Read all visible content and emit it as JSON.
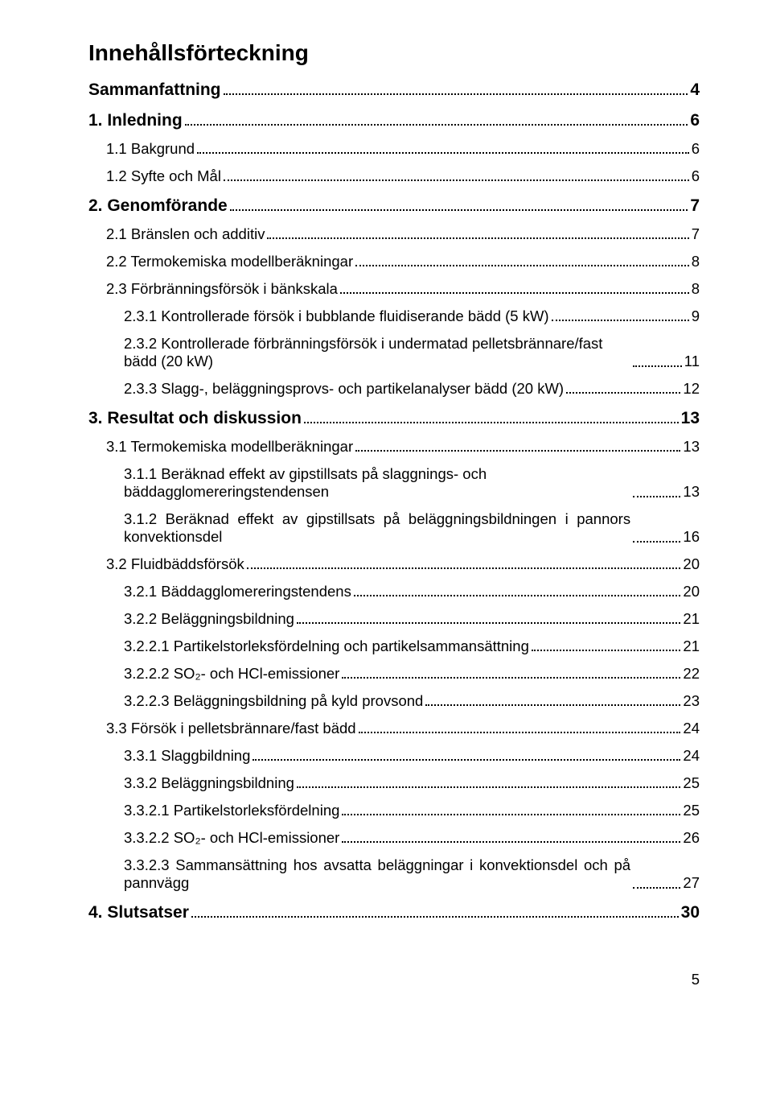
{
  "title": "Innehållsförteckning",
  "page_number": "5",
  "entries": [
    {
      "label": "Sammanfattning",
      "page": "4",
      "level": 0
    },
    {
      "label": "1. Inledning",
      "page": "6",
      "level": 0
    },
    {
      "label": "1.1 Bakgrund",
      "page": "6",
      "level": 1
    },
    {
      "label": "1.2 Syfte och Mål",
      "page": "6",
      "level": 1
    },
    {
      "label": "2. Genomförande",
      "page": "7",
      "level": 0
    },
    {
      "label": "2.1 Bränslen och additiv",
      "page": "7",
      "level": 1
    },
    {
      "label": "2.2 Termokemiska modellberäkningar",
      "page": "8",
      "level": 1
    },
    {
      "label": "2.3 Förbränningsförsök i bänkskala",
      "page": "8",
      "level": 1
    },
    {
      "label": "2.3.1 Kontrollerade försök i bubblande fluidiserande bädd (5 kW)",
      "page": "9",
      "level": 2
    },
    {
      "label": "2.3.2 Kontrollerade förbränningsförsök i undermatad pelletsbrännare/fast bädd (20 kW)",
      "page": "11",
      "level": 2,
      "wrap": true
    },
    {
      "label": "2.3.3 Slagg-, beläggningsprovs- och partikelanalyser bädd (20 kW)",
      "page": "12",
      "level": 2
    },
    {
      "label": "3. Resultat och diskussion",
      "page": "13",
      "level": 0
    },
    {
      "label": "3.1 Termokemiska modellberäkningar",
      "page": "13",
      "level": 1
    },
    {
      "label": "3.1.1 Beräknad effekt av gipstillsats på slaggnings- och bäddagglomereringstendensen",
      "page": "13",
      "level": 2,
      "wrap": true
    },
    {
      "label": "3.1.2 Beräknad effekt av gipstillsats på beläggningsbildningen i pannors konvektionsdel",
      "page": "16",
      "level": 2,
      "wrap": true,
      "justify": true
    },
    {
      "label": "3.2 Fluidbäddsförsök",
      "page": "20",
      "level": 1
    },
    {
      "label": "3.2.1 Bäddagglomereringstendens",
      "page": "20",
      "level": 2
    },
    {
      "label": "3.2.2 Beläggningsbildning",
      "page": "21",
      "level": 2
    },
    {
      "label": "3.2.2.1 Partikelstorleksfördelning och partikelsammansättning",
      "page": "21",
      "level": 2
    },
    {
      "label": "3.2.2.2 SO₂- och HCl-emissioner",
      "page": "22",
      "level": 2
    },
    {
      "label": "3.2.2.3 Beläggningsbildning på kyld provsond",
      "page": "23",
      "level": 2
    },
    {
      "label": "3.3 Försök i pelletsbrännare/fast bädd",
      "page": "24",
      "level": 1
    },
    {
      "label": "3.3.1 Slaggbildning",
      "page": "24",
      "level": 2
    },
    {
      "label": "3.3.2 Beläggningsbildning",
      "page": "25",
      "level": 2
    },
    {
      "label": "3.3.2.1 Partikelstorleksfördelning",
      "page": "25",
      "level": 2
    },
    {
      "label": "3.3.2.2 SO₂- och HCl-emissioner",
      "page": "26",
      "level": 2
    },
    {
      "label": "3.3.2.3 Sammansättning hos avsatta beläggningar i konvektionsdel och på pannvägg",
      "page": "27",
      "level": 2,
      "wrap": true,
      "justify": true
    },
    {
      "label": "4. Slutsatser",
      "page": "30",
      "level": 0
    }
  ]
}
